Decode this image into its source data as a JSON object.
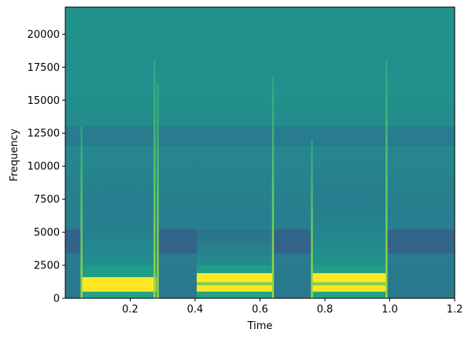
{
  "chart_data": {
    "type": "heatmap",
    "subtype": "spectrogram",
    "title": "",
    "xlabel": "Time",
    "ylabel": "Frequency",
    "xlim": [
      0.0,
      1.2
    ],
    "ylim": [
      0,
      22050
    ],
    "x_ticks": [
      0.2,
      0.4,
      0.6,
      0.8,
      1.0,
      1.2
    ],
    "x_tick_labels": [
      "0.2",
      "0.4",
      "0.6",
      "0.8",
      "1.0",
      "1.2"
    ],
    "y_ticks": [
      0,
      2500,
      5000,
      7500,
      10000,
      12500,
      15000,
      17500,
      20000
    ],
    "y_tick_labels": [
      "0",
      "2500",
      "5000",
      "7500",
      "10000",
      "12500",
      "15000",
      "17500",
      "20000"
    ],
    "grid": false,
    "colormap": "viridis",
    "background_color": "#21918c",
    "bands": [
      {
        "name": "noise-dip",
        "t0": 0.0,
        "t1": 1.2,
        "f0": 3400,
        "f1": 5200,
        "color": "#3b5088"
      },
      {
        "name": "noise-dark-upper",
        "t0": 0.0,
        "t1": 1.2,
        "f0": 11500,
        "f1": 13000,
        "color": "#2c718e"
      }
    ],
    "tones": [
      {
        "name": "tone-1",
        "t0": 0.05,
        "t1": 0.28,
        "f_max": 9000,
        "bright_bands": [
          [
            500,
            1600
          ]
        ],
        "dark_lines": []
      },
      {
        "name": "tone-2",
        "t0": 0.405,
        "t1": 0.64,
        "f_max": 7000,
        "bright_bands": [
          [
            500,
            1900
          ]
        ],
        "dark_lines": [
          1100
        ]
      },
      {
        "name": "tone-3",
        "t0": 0.76,
        "t1": 0.99,
        "f_max": 10500,
        "bright_bands": [
          [
            500,
            1900
          ]
        ],
        "dark_lines": [
          1100
        ]
      }
    ],
    "transients": [
      {
        "t": 0.05,
        "f_max": 13000
      },
      {
        "t": 0.275,
        "f_max": 18000
      },
      {
        "t": 0.285,
        "f_max": 16200
      },
      {
        "t": 0.64,
        "f_max": 16800
      },
      {
        "t": 0.76,
        "f_max": 12000
      },
      {
        "t": 0.99,
        "f_max": 18000
      }
    ]
  }
}
